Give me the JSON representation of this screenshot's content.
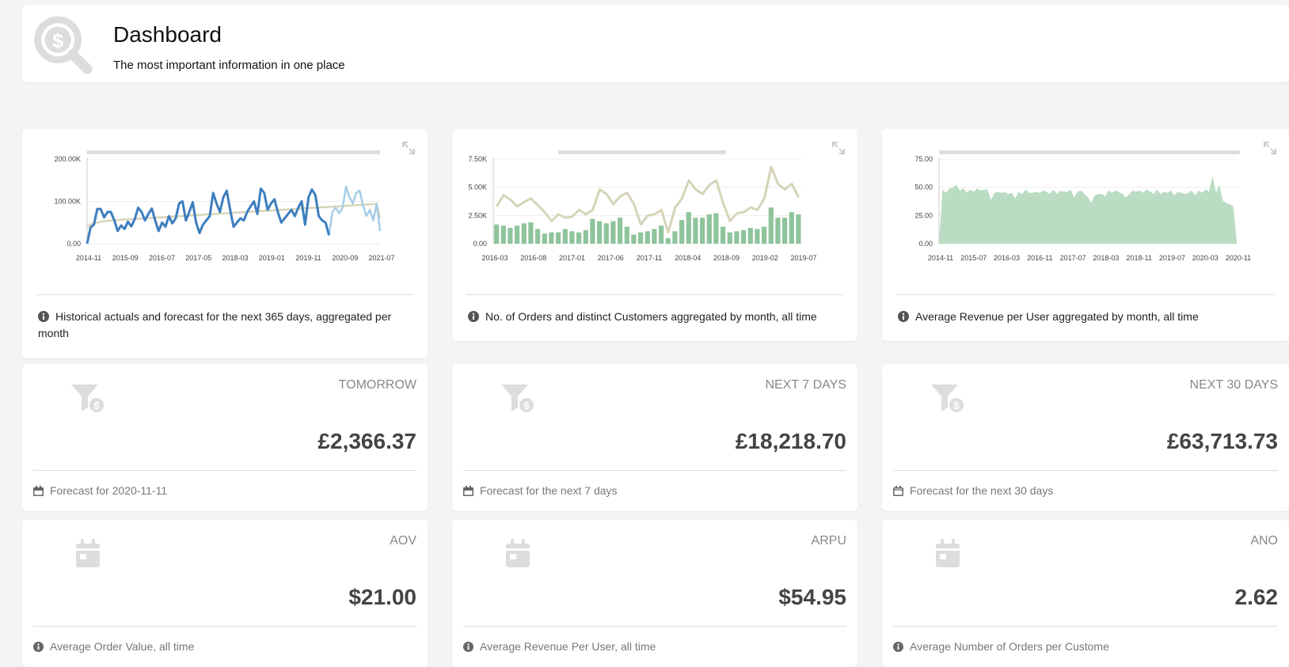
{
  "header": {
    "title": "Dashboard",
    "subtitle": "The most important information in one place",
    "logo_icon": "dollar-search-icon"
  },
  "charts": [
    {
      "caption": "Historical actuals and forecast for the next 365 days, aggregated per month",
      "chart_data": {
        "type": "line",
        "x_ticks": [
          "2014-11",
          "2015-09",
          "2016-07",
          "2017-05",
          "2018-03",
          "2019-01",
          "2019-11",
          "2020-09",
          "2021-07"
        ],
        "y_ticks": [
          "0.00",
          "100.00K",
          "200.00K"
        ],
        "ylim": [
          0,
          200000
        ],
        "series": [
          {
            "color": "#3d7ebf",
            "values": [
              0,
              38000,
              45000,
              82000,
              82000,
              62000,
              75000,
              75000,
              55000,
              30000,
              43000,
              35000,
              52000,
              41000,
              58000,
              85000,
              75000,
              55000,
              70000,
              83000,
              55000,
              30000,
              50000,
              40000,
              65000,
              48000,
              60000,
              95000,
              100000,
              55000,
              75000,
              98000,
              50000,
              25000,
              45000,
              55000,
              65000,
              120000,
              95000,
              75000,
              110000,
              125000,
              80000,
              40000,
              50000,
              60000,
              55000,
              75000,
              88000,
              100000,
              70000,
              130000,
              120000,
              80000,
              95000,
              105000,
              75000,
              50000,
              60000,
              70000,
              80000,
              65000,
              85000,
              100000,
              45000,
              110000,
              128000,
              115000,
              65000,
              55000,
              50000,
              20000
            ]
          },
          {
            "color": "#a6cde6",
            "values": [
              null,
              null,
              null,
              null,
              null,
              null,
              null,
              null,
              null,
              null,
              null,
              null,
              null,
              null,
              null,
              null,
              null,
              null,
              null,
              null,
              null,
              null,
              null,
              null,
              null,
              null,
              null,
              null,
              null,
              null,
              null,
              null,
              null,
              null,
              null,
              null,
              null,
              null,
              null,
              null,
              null,
              null,
              null,
              null,
              null,
              null,
              null,
              null,
              null,
              null,
              null,
              null,
              null,
              null,
              null,
              null,
              null,
              null,
              null,
              null,
              null,
              null,
              null,
              null,
              null,
              null,
              null,
              null,
              null,
              null,
              null,
              20000,
              75000,
              85000,
              72000,
              85000,
              135000,
              110000,
              95000,
              120000,
              125000,
              90000,
              65000,
              80000,
              55000,
              95000,
              30000
            ]
          },
          {
            "color": "#d6d4b8",
            "values": [
              40000,
              45000,
              48000,
              50000,
              52000,
              53000,
              54000,
              55000,
              55500,
              56000,
              56500,
              57000,
              57500,
              58000,
              58500,
              59000,
              59500,
              60000,
              60500,
              61000,
              61500,
              62000,
              62500,
              63000,
              63500,
              64000,
              64500,
              65000,
              65500,
              66000,
              66500,
              67000,
              67500,
              68000,
              68500,
              69000,
              69500,
              70000,
              70500,
              71000,
              71500,
              72000,
              72500,
              73000,
              73500,
              74000,
              74500,
              75000,
              75500,
              76000,
              76500,
              77000,
              77500,
              78000,
              78500,
              79000,
              79500,
              80000,
              80500,
              81000,
              81500,
              82000,
              82500,
              83000,
              83500,
              84000,
              84500,
              85000,
              85500,
              86000,
              86500,
              87000,
              87500,
              88000,
              88500,
              89000,
              89500,
              90000,
              90500,
              91000,
              91500,
              92000,
              92500,
              93000,
              93500,
              94000,
              60000
            ]
          }
        ]
      }
    },
    {
      "caption": "No. of Orders and distinct Customers aggregated by month, all time",
      "chart_data": {
        "type": "bar",
        "x_ticks": [
          "2016-03",
          "2016-08",
          "2017-01",
          "2017-06",
          "2017-11",
          "2018-04",
          "2018-09",
          "2019-02",
          "2019-07"
        ],
        "y_ticks": [
          "0.00",
          "2.50K",
          "5.00K",
          "7.50K"
        ],
        "ylim": [
          0,
          7500
        ],
        "bar_color": "#8fc49b",
        "line_color": "#d6d4b8",
        "bars": [
          1700,
          1600,
          1400,
          1600,
          1800,
          1900,
          1300,
          900,
          1000,
          1000,
          1300,
          1100,
          1000,
          1200,
          2200,
          2000,
          1800,
          2000,
          2300,
          1500,
          800,
          1000,
          1100,
          1300,
          1600,
          500,
          1100,
          2100,
          2800,
          2300,
          2300,
          2600,
          2700,
          1500,
          1000,
          1100,
          1200,
          1400,
          1300,
          1500,
          3200,
          2300,
          2300,
          2800,
          2600
        ],
        "line": [
          3300,
          4300,
          3900,
          3300,
          3700,
          4000,
          3400,
          2800,
          2000,
          2600,
          2300,
          2400,
          3000,
          2600,
          3000,
          4800,
          4400,
          3500,
          4200,
          4500,
          3500,
          1700,
          2500,
          2600,
          3000,
          1000,
          3200,
          4000,
          5600,
          4800,
          4400,
          5200,
          5600,
          3600,
          2000,
          2700,
          2800,
          3200,
          3000,
          4000,
          6800,
          5300,
          4800,
          5300,
          4100
        ]
      }
    },
    {
      "caption": "Average Revenue per User aggregated by month, all time",
      "chart_data": {
        "type": "area",
        "x_ticks": [
          "2014-11",
          "2015-07",
          "2016-03",
          "2016-11",
          "2017-07",
          "2018-03",
          "2018-11",
          "2019-07",
          "2020-03",
          "2020-11"
        ],
        "y_ticks": [
          "0.00",
          "25.00",
          "50.00",
          "75.00"
        ],
        "ylim": [
          0,
          75
        ],
        "fill_color": "#b9dcc2",
        "values": [
          0,
          48,
          45,
          49,
          50,
          52,
          47,
          49,
          45,
          48,
          46,
          49,
          47,
          48,
          48,
          39,
          45,
          46,
          45,
          46,
          44,
          45,
          40,
          46,
          44,
          48,
          45,
          45,
          46,
          45,
          47,
          46,
          44,
          48,
          44,
          47,
          46,
          46,
          48,
          41,
          46,
          47,
          44,
          41,
          36,
          43,
          44,
          44,
          42,
          47,
          45,
          47,
          46,
          44,
          41,
          44,
          47,
          46,
          47,
          45,
          48,
          46,
          44,
          48,
          44,
          46,
          45,
          47,
          43,
          46,
          45,
          44,
          45,
          47,
          43,
          47,
          45,
          48,
          46,
          60,
          45,
          52,
          38,
          36,
          35,
          33,
          2
        ]
      }
    }
  ],
  "stats": [
    {
      "label": "TOMORROW",
      "value": "£2,366.37",
      "foot": "Forecast for 2020-11-11",
      "icon": "funnel-dollar-icon",
      "foot_icon": "calendar-solid-icon"
    },
    {
      "label": "NEXT 7 DAYS",
      "value": "£18,218.70",
      "foot": "Forecast for the next 7 days",
      "icon": "funnel-dollar-icon",
      "foot_icon": "calendar-solid-icon"
    },
    {
      "label": "NEXT 30 DAYS",
      "value": "£63,713.73",
      "foot": "Forecast for the next 30 days",
      "icon": "funnel-dollar-icon",
      "foot_icon": "calendar-outline-icon"
    },
    {
      "label": "AOV",
      "value": "$21.00",
      "foot": "Average Order Value, all time",
      "icon": "calendar-icon",
      "foot_icon": "info-icon"
    },
    {
      "label": "ARPU",
      "value": "$54.95",
      "foot": "Average Revenue Per User, all time",
      "icon": "calendar-icon",
      "foot_icon": "info-icon"
    },
    {
      "label": "ANO",
      "value": "2.62",
      "foot": "Average Number of Orders per Custome",
      "icon": "calendar-icon",
      "foot_icon": "info-icon"
    }
  ]
}
